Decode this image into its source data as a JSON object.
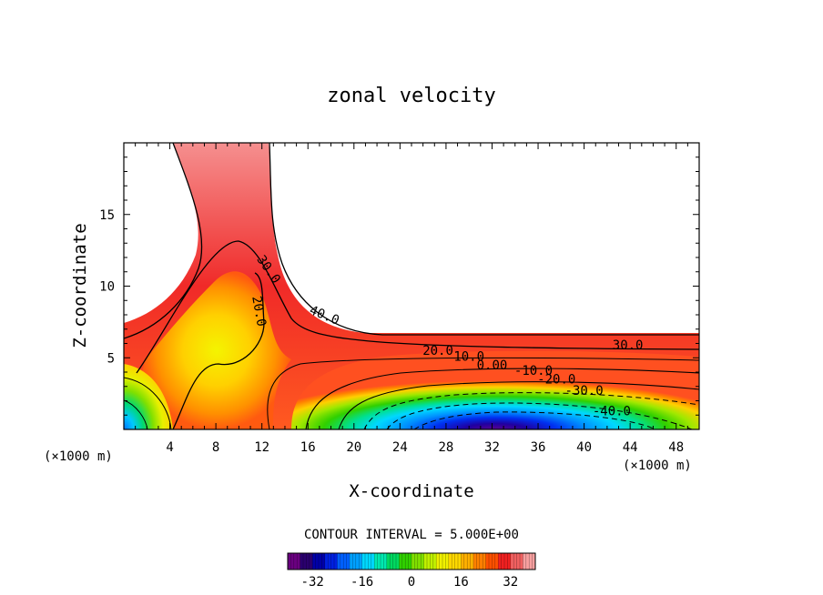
{
  "chart_data": {
    "type": "contour",
    "title": "zonal velocity",
    "xlabel": "X-coordinate",
    "ylabel": "Z-coordinate",
    "x_unit_label": "(×1000 m)",
    "y_unit_label": "(×1000 m)",
    "xlim": [
      0,
      50
    ],
    "ylim": [
      0,
      20
    ],
    "x_ticks": [
      4,
      8,
      12,
      16,
      20,
      24,
      28,
      32,
      36,
      40,
      44,
      48
    ],
    "y_ticks": [
      5,
      10,
      15
    ],
    "contour_interval_text": "CONTOUR INTERVAL = 5.000E+00",
    "contour_labels": [
      {
        "text": "30.0",
        "x": 12.3,
        "y": 11.0,
        "rot": 55
      },
      {
        "text": "20.0",
        "x": 11.4,
        "y": 8.2,
        "rot": 80
      },
      {
        "text": "40.0",
        "x": 17.3,
        "y": 7.7,
        "rot": 22
      },
      {
        "text": "30.0",
        "x": 43.8,
        "y": 5.6,
        "rot": 0
      },
      {
        "text": "20.0",
        "x": 27.3,
        "y": 5.2,
        "rot": 0
      },
      {
        "text": "10.0",
        "x": 30.0,
        "y": 4.8,
        "rot": 0
      },
      {
        "text": "0.00",
        "x": 32.0,
        "y": 4.2,
        "rot": 0
      },
      {
        "text": "-10.0",
        "x": 35.6,
        "y": 3.8,
        "rot": 0
      },
      {
        "text": "-20.0",
        "x": 37.6,
        "y": 3.2,
        "rot": 0
      },
      {
        "text": "-30.0",
        "x": 40.0,
        "y": 2.4,
        "rot": 0
      },
      {
        "text": "-40.0",
        "x": 42.4,
        "y": 1.0,
        "rot": 0
      }
    ],
    "colorbar": {
      "range": [
        -40,
        40
      ],
      "tick_values": [
        -32,
        -16,
        0,
        16,
        32
      ],
      "tick_labels": [
        "-32",
        "-16",
        "0",
        "16",
        "32"
      ],
      "colors": [
        "#6a0080",
        "#2a006e",
        "#0000a8",
        "#0020e0",
        "#0060ff",
        "#00a0ff",
        "#00d8ff",
        "#00e8b0",
        "#00d860",
        "#30d000",
        "#80e000",
        "#c0f000",
        "#f0f000",
        "#ffd800",
        "#ffb000",
        "#ff8000",
        "#ff5000",
        "#f02020",
        "#f06060",
        "#f8a0a0"
      ]
    }
  }
}
